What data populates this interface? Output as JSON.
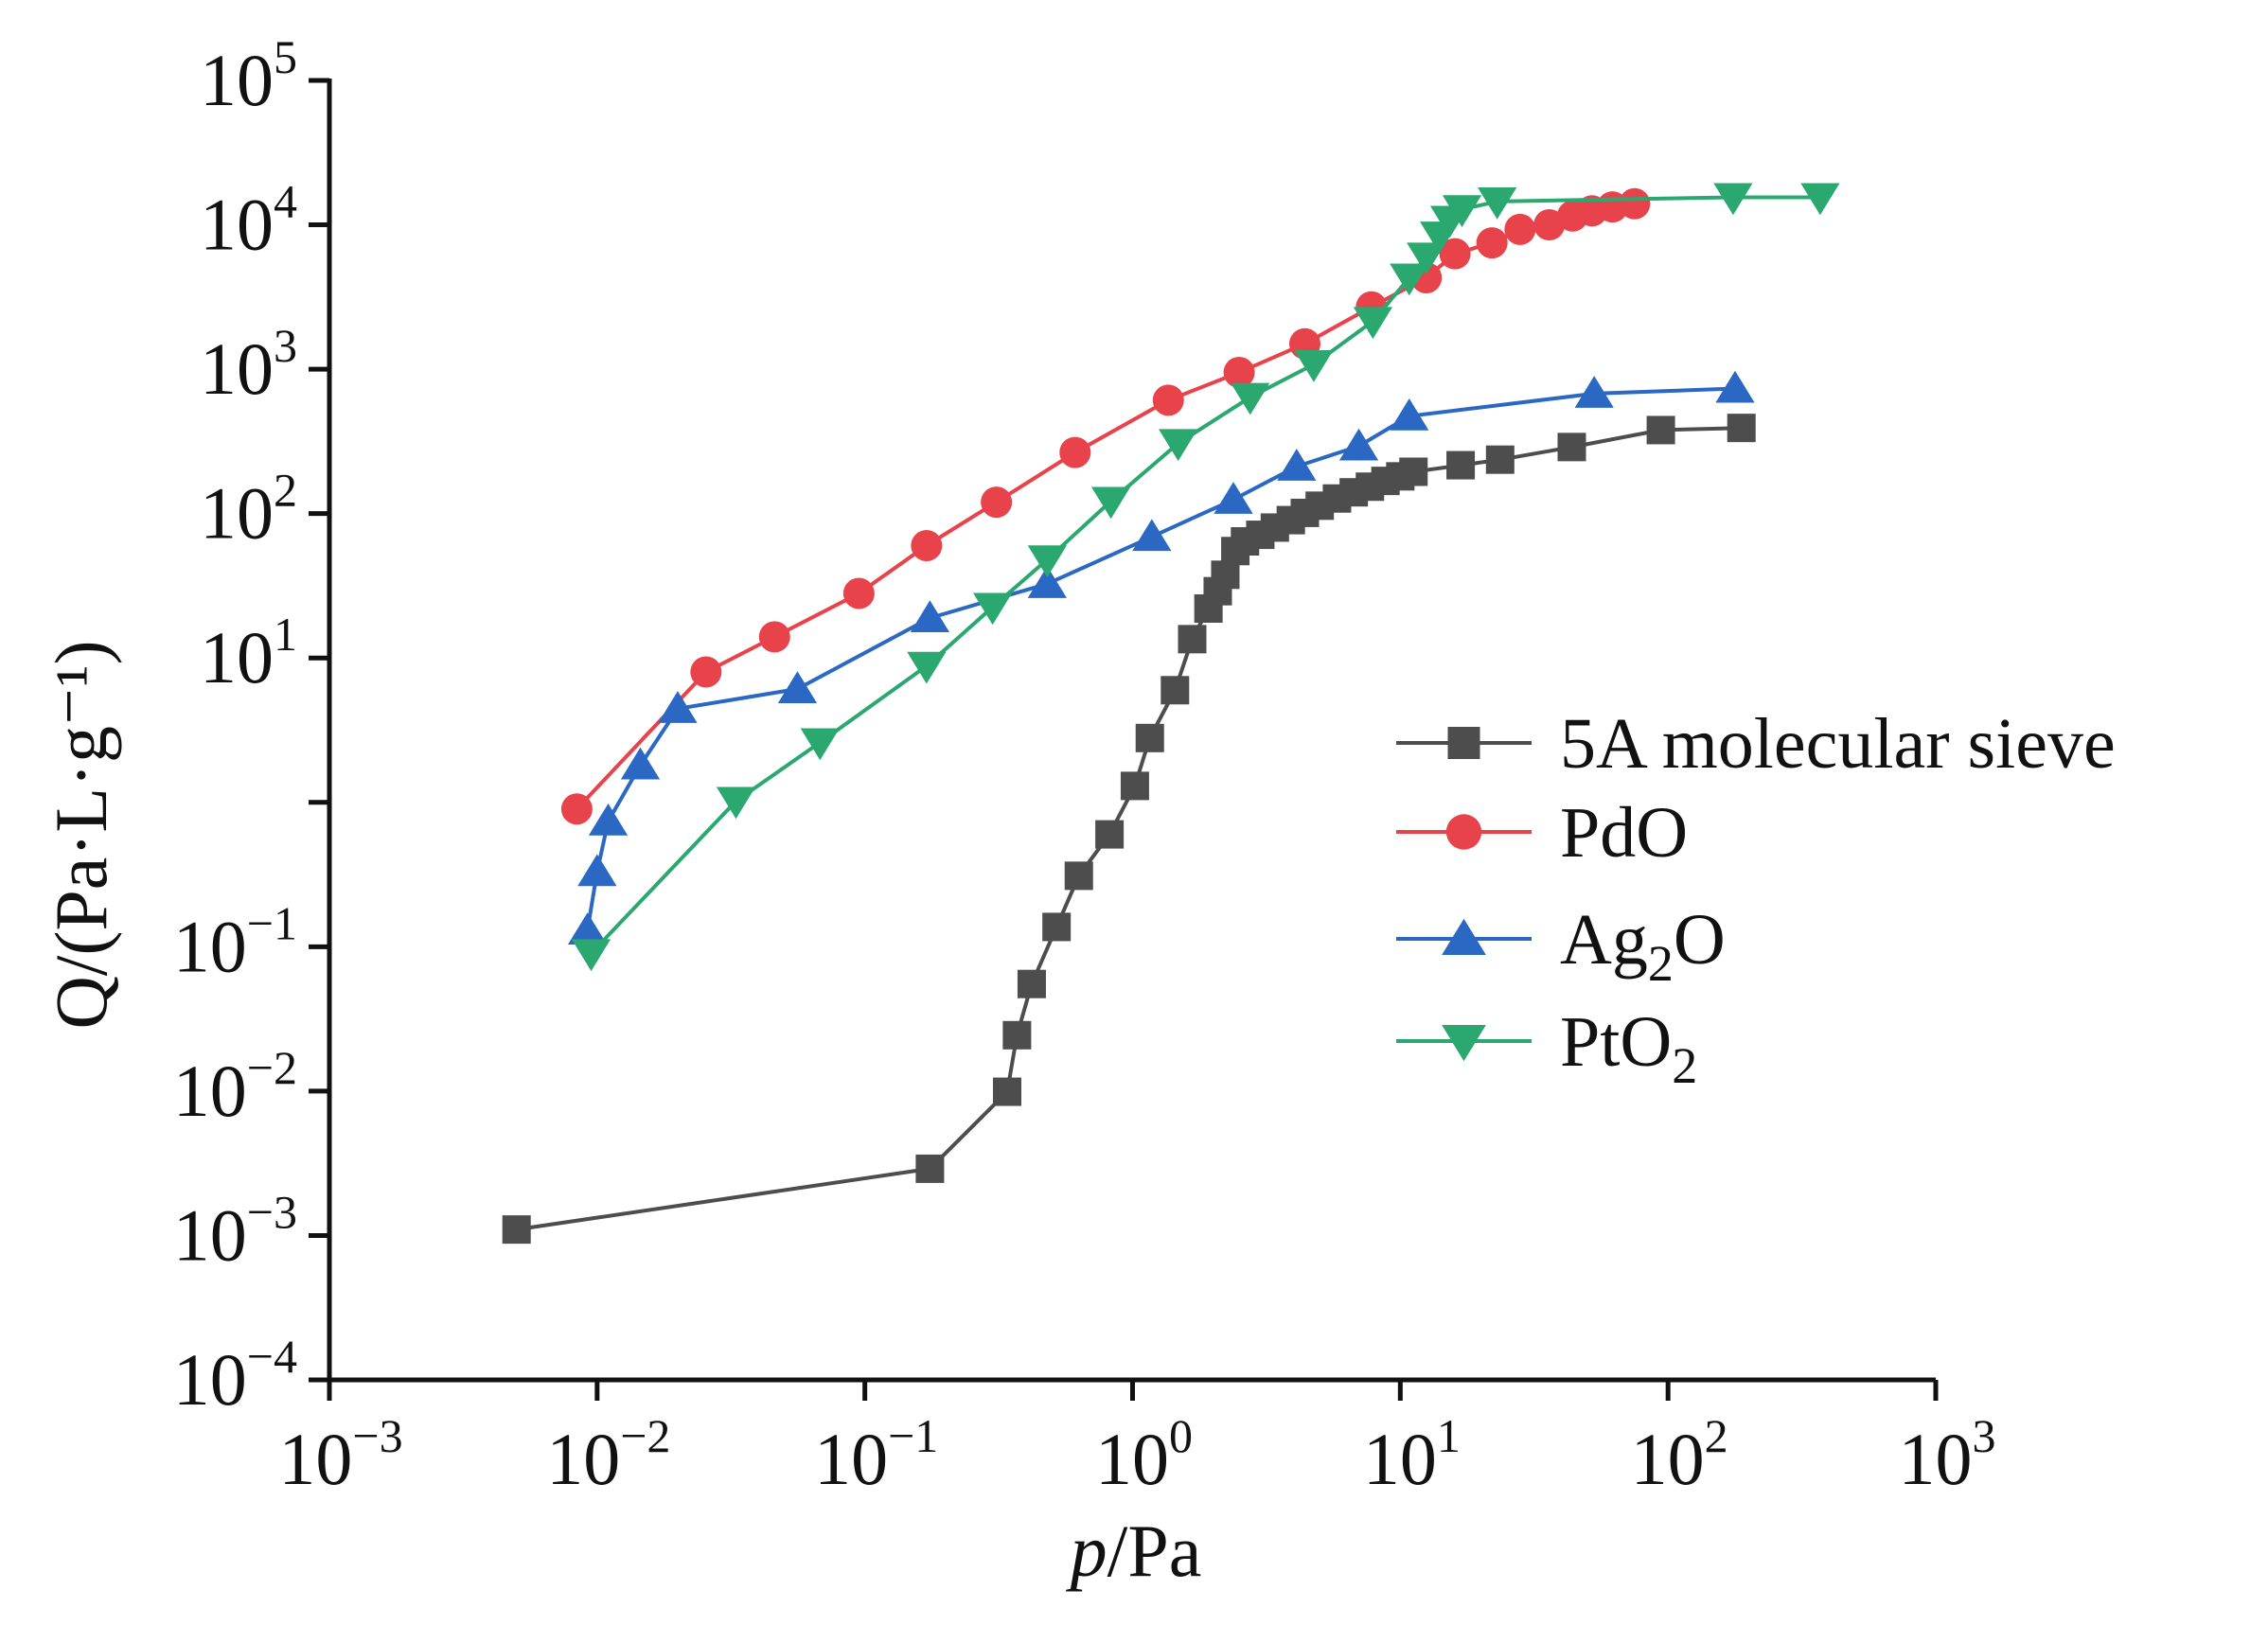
{
  "chart_data": {
    "type": "line",
    "title": "",
    "scale": "log-log",
    "xlabel": "p/Pa",
    "xlabel_parts": {
      "italic": "p",
      "normal": "/Pa"
    },
    "ylabel": "Q/(Pa·L·g⁻¹)",
    "xlim": [
      0.001,
      1000
    ],
    "ylim": [
      0.0001,
      100000
    ],
    "x_ticks": [
      {
        "value": 0.001,
        "base": "10",
        "exp": "−3"
      },
      {
        "value": 0.01,
        "base": "10",
        "exp": "−2"
      },
      {
        "value": 0.1,
        "base": "10",
        "exp": "−1"
      },
      {
        "value": 1,
        "base": "10",
        "exp": "0"
      },
      {
        "value": 10,
        "base": "10",
        "exp": "1"
      },
      {
        "value": 100,
        "base": "10",
        "exp": "2"
      },
      {
        "value": 1000,
        "base": "10",
        "exp": "3"
      }
    ],
    "y_ticks": [
      {
        "value": 0.0001,
        "base": "10",
        "exp": "−4"
      },
      {
        "value": 0.001,
        "base": "10",
        "exp": "−3"
      },
      {
        "value": 0.01,
        "base": "10",
        "exp": "−2"
      },
      {
        "value": 0.1,
        "base": "10",
        "exp": "−1"
      },
      {
        "value": 10,
        "base": "10",
        "exp": "1"
      },
      {
        "value": 100,
        "base": "10",
        "exp": "2"
      },
      {
        "value": 1000,
        "base": "10",
        "exp": "3"
      },
      {
        "value": 10000,
        "base": "10",
        "exp": "4"
      },
      {
        "value": 100000,
        "base": "10",
        "exp": "5"
      }
    ],
    "legend_position": "right",
    "series": [
      {
        "name": "5A molecular sieve",
        "label_parts": [
          {
            "text": "5A molecular sieve"
          }
        ],
        "color": "#4d4d4d",
        "marker": "square",
        "x": [
          0.005,
          0.175,
          0.34,
          0.37,
          0.42,
          0.52,
          0.63,
          0.82,
          1.02,
          1.16,
          1.44,
          1.67,
          1.92,
          2.08,
          2.22,
          2.42,
          2.63,
          3.0,
          3.4,
          3.9,
          4.4,
          5.0,
          5.8,
          6.7,
          7.7,
          8.8,
          10.0,
          11.2,
          16.8,
          23.6,
          43.7,
          94.0,
          188.0
        ],
        "y": [
          0.0011,
          0.0029,
          0.0099,
          0.0244,
          0.0552,
          0.1371,
          0.31,
          0.6,
          1.3,
          2.79,
          5.98,
          13.5,
          22.0,
          29.0,
          37.7,
          55.0,
          64.2,
          71.3,
          80.0,
          90.1,
          101.1,
          113.4,
          127.2,
          140.4,
          153.6,
          168.4,
          181.1,
          194.8,
          216.3,
          236.3,
          289.0,
          378.7,
          392.0
        ]
      },
      {
        "name": "PdO",
        "label_parts": [
          {
            "text": "PdO"
          }
        ],
        "color": "#e8424a",
        "marker": "circle",
        "x": [
          0.0084,
          0.0255,
          0.046,
          0.095,
          0.17,
          0.31,
          0.61,
          1.36,
          2.5,
          4.4,
          7.8,
          12.5,
          16.0,
          22.0,
          28.0,
          36.0,
          44.0,
          52.0,
          62.0,
          75.0
        ],
        "y": [
          0.9,
          8.0,
          14.0,
          28.0,
          60.0,
          120.0,
          265.0,
          610.0,
          950.0,
          1500.0,
          2700.0,
          4300.0,
          6300.0,
          7500.0,
          9300.0,
          10000.0,
          11500.0,
          12500.0,
          13300.0,
          14000.0
        ]
      },
      {
        "name": "Ag2O",
        "label_parts": [
          {
            "text": "Ag"
          },
          {
            "text": "2",
            "sub": true
          },
          {
            "text": "O"
          }
        ],
        "color": "#2a68c4",
        "marker": "triangle-up",
        "x": [
          0.0092,
          0.01,
          0.011,
          0.0145,
          0.02,
          0.056,
          0.175,
          0.48,
          1.18,
          2.38,
          4.1,
          7.0,
          10.8,
          53.0,
          178.0
        ],
        "y": [
          0.13,
          0.33,
          0.74,
          1.81,
          4.45,
          6.1,
          18.9,
          32.6,
          69.1,
          125.0,
          212.0,
          293.0,
          473.0,
          678.0,
          735.0
        ]
      },
      {
        "name": "PtO2",
        "label_parts": [
          {
            "text": "PtO"
          },
          {
            "text": "2",
            "sub": true
          }
        ],
        "color": "#2aa870",
        "marker": "triangle-down",
        "x": [
          0.0095,
          0.033,
          0.068,
          0.17,
          0.3,
          0.48,
          0.83,
          1.48,
          2.75,
          4.75,
          7.9,
          10.8,
          12.5,
          14.0,
          15.3,
          17.0,
          23.0,
          175.0,
          370.0
        ],
        "y": [
          0.09,
          1.02,
          2.6,
          8.8,
          22.5,
          48.0,
          122.0,
          307.0,
          640.0,
          1080.0,
          2150.0,
          4300.0,
          6000.0,
          8400.0,
          10800.0,
          12800.0,
          14500.0,
          15500.0,
          15500.0
        ]
      }
    ]
  }
}
